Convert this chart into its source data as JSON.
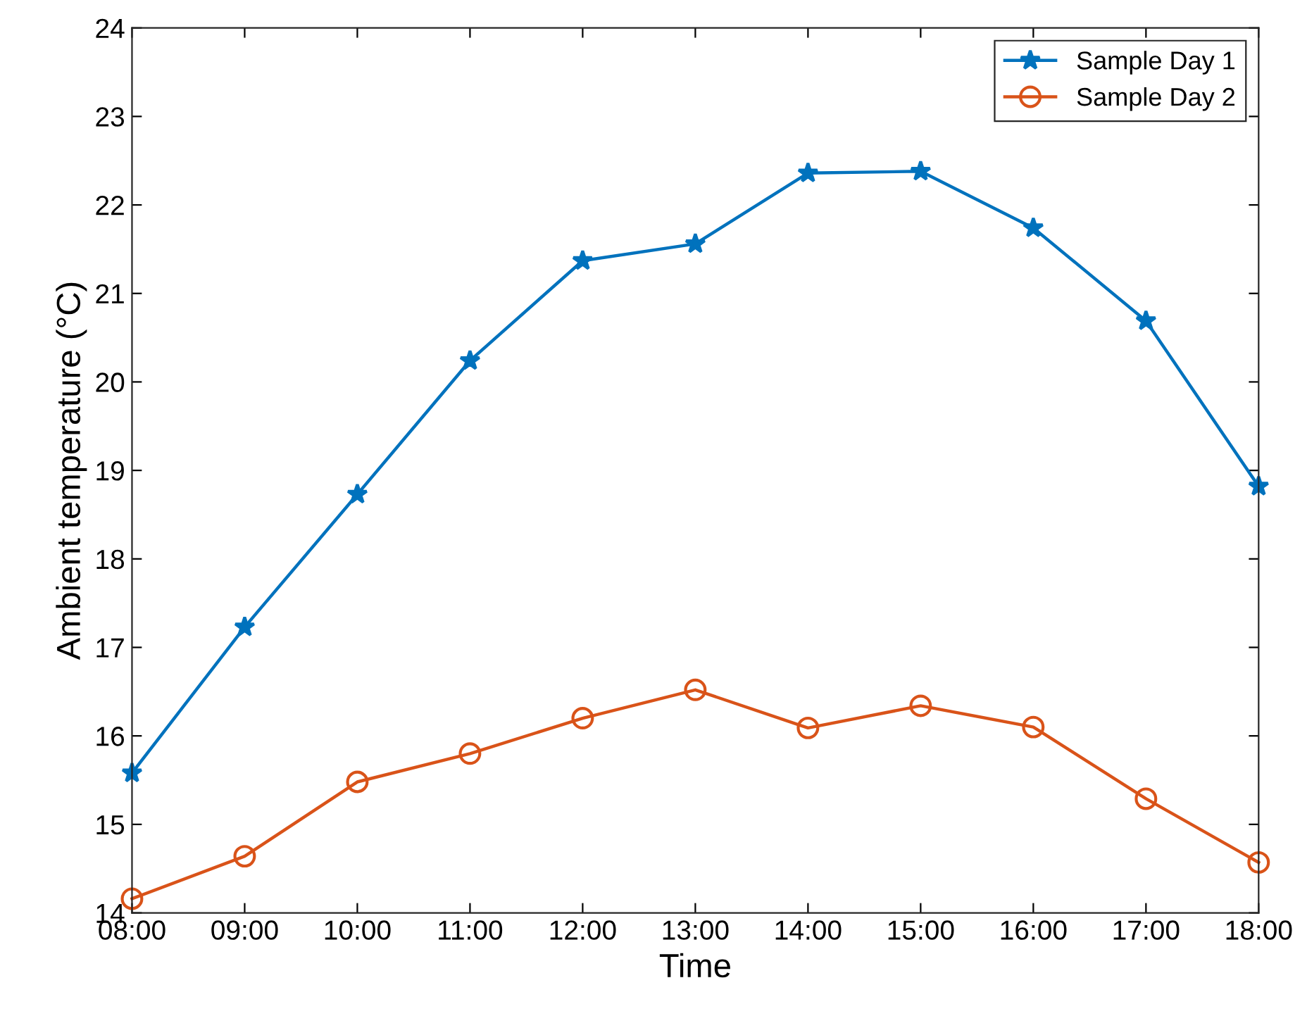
{
  "chart_data": {
    "type": "line",
    "xlabel": "Time",
    "ylabel": "Ambient temperature (°C)",
    "x": [
      8,
      9,
      10,
      11,
      12,
      13,
      14,
      15,
      16,
      17,
      18
    ],
    "xlim": [
      8,
      18
    ],
    "xticks": [
      {
        "value": 8,
        "label": "08:00"
      },
      {
        "value": 9,
        "label": "09:00"
      },
      {
        "value": 10,
        "label": "10:00"
      },
      {
        "value": 11,
        "label": "11:00"
      },
      {
        "value": 12,
        "label": "12:00"
      },
      {
        "value": 13,
        "label": "13:00"
      },
      {
        "value": 14,
        "label": "14:00"
      },
      {
        "value": 15,
        "label": "15:00"
      },
      {
        "value": 16,
        "label": "16:00"
      },
      {
        "value": 17,
        "label": "17:00"
      },
      {
        "value": 18,
        "label": "18:00"
      }
    ],
    "ylim": [
      14,
      24
    ],
    "yticks": [
      14,
      15,
      16,
      17,
      18,
      19,
      20,
      21,
      22,
      23,
      24
    ],
    "series": [
      {
        "name": "Sample Day 1",
        "color": "#0072bd",
        "marker": "star",
        "values": [
          15.58,
          17.23,
          18.73,
          20.24,
          21.37,
          21.56,
          22.36,
          22.38,
          21.74,
          20.69,
          18.82
        ]
      },
      {
        "name": "Sample Day 2",
        "color": "#d95319",
        "marker": "circle",
        "values": [
          14.16,
          14.64,
          15.48,
          15.8,
          16.2,
          16.52,
          16.09,
          16.34,
          16.1,
          15.29,
          14.57
        ]
      }
    ],
    "line_style": "solid",
    "legend": "top right",
    "grid": false
  }
}
